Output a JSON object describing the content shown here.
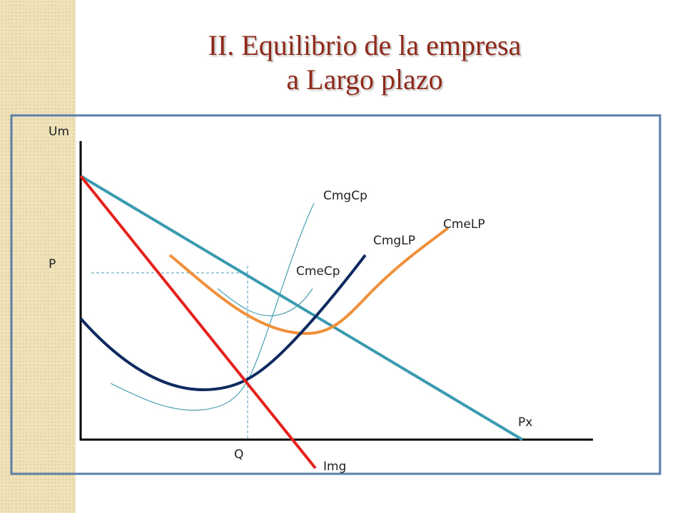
{
  "header": {
    "title_lines": [
      "II. Equilibrio de la empresa",
      "a Largo plazo"
    ]
  },
  "diagram": {
    "axis_labels": {
      "y": "Um",
      "price": "P",
      "quantity": "Q"
    },
    "curve_labels": {
      "demand": "Px",
      "marginal_revenue": "Img",
      "short_run_marginal_cost": "CmgCp",
      "long_run_average_cost": "CmeLP",
      "long_run_marginal_cost": "CmgLP",
      "short_run_average_cost": "CmeCp"
    }
  }
}
